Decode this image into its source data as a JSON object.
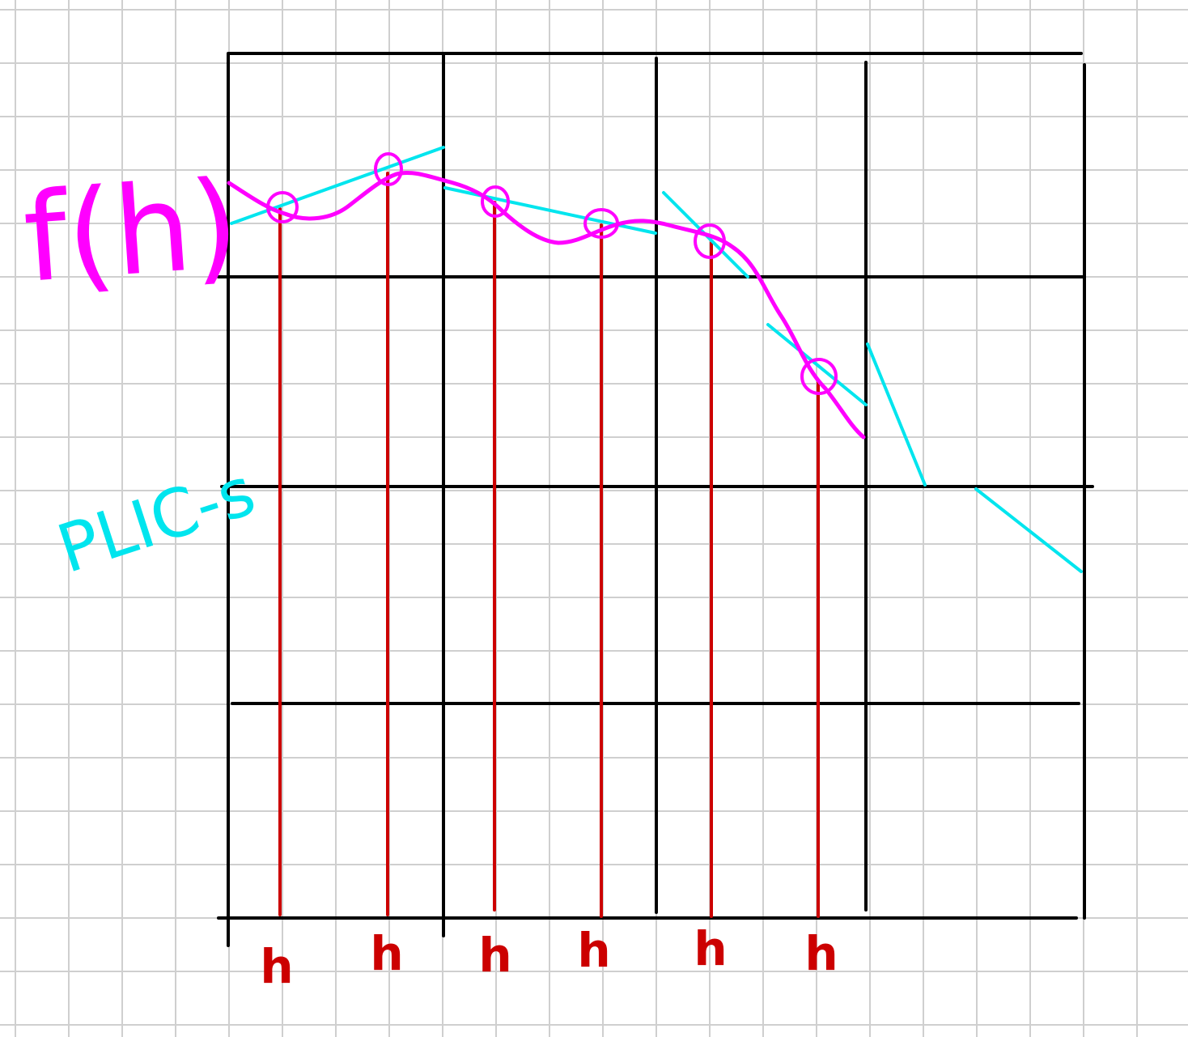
{
  "labels": {
    "function": "f(h)",
    "plc": "PLIC-s",
    "h_ticks": [
      "h",
      "h",
      "h",
      "h",
      "h",
      "h"
    ]
  },
  "colors": {
    "paper": "#ffffff",
    "paper_grid": "#cfcfcf",
    "cell_grid": "#000000",
    "curve": "#ff00ff",
    "plc": "#00e5ee",
    "h_lines": "#cc0000"
  }
}
